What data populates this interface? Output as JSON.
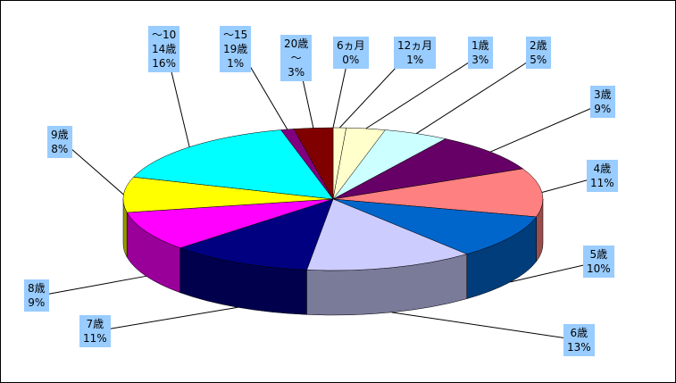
{
  "chart_data": {
    "type": "pie",
    "categories": [
      "6ヵ月",
      "12ヵ月",
      "1歳",
      "2歳",
      "3歳",
      "4歳",
      "5歳",
      "6歳",
      "7歳",
      "8歳",
      "9歳",
      "～10\n14歳",
      "～15\n19歳",
      "20歳\n～"
    ],
    "values": [
      0,
      1,
      3,
      5,
      9,
      11,
      10,
      13,
      11,
      9,
      8,
      16,
      1,
      3
    ],
    "value_labels": [
      "0%",
      "1%",
      "3%",
      "5%",
      "9%",
      "11%",
      "10%",
      "13%",
      "11%",
      "9%",
      "8%",
      "16%",
      "1%",
      "3%"
    ],
    "colors": [
      "#9999ff",
      "#ffffcc",
      "#ffffcc",
      "#ccffff",
      "#660066",
      "#ff8080",
      "#0066cc",
      "#ccccff",
      "#000080",
      "#ff00ff",
      "#ffff00",
      "#00ffff",
      "#800080",
      "#800000"
    ]
  }
}
